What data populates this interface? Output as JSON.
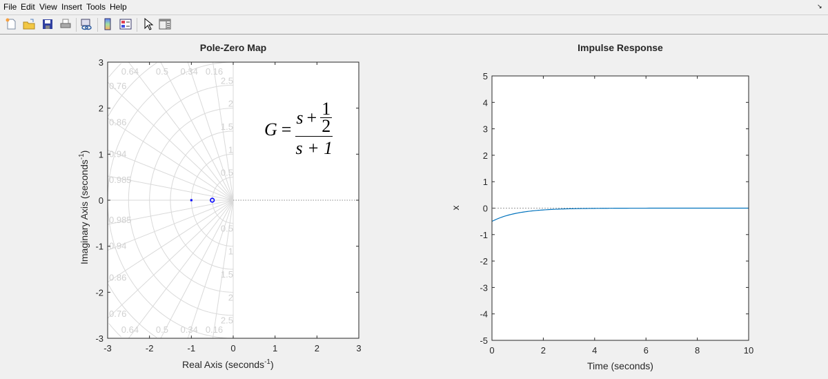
{
  "menu": [
    "File",
    "Edit",
    "View",
    "Insert",
    "Tools",
    "Help"
  ],
  "toolbar": [
    {
      "icon": "new-figure-icon"
    },
    {
      "icon": "open-file-icon"
    },
    {
      "icon": "save-icon"
    },
    {
      "icon": "print-icon"
    },
    {
      "icon": "link-plot-icon"
    },
    {
      "icon": "insert-colorbar-icon"
    },
    {
      "icon": "insert-legend-icon"
    },
    {
      "icon": "edit-plot-pointer-icon"
    },
    {
      "icon": "property-editor-icon"
    }
  ],
  "colors": {
    "axes_bg": "#ffffff",
    "figure_bg": "#f0f0f0",
    "marker": "#0000ff",
    "line": "#0072bd",
    "grid": "#d9d9d9"
  },
  "equation": {
    "lhs": "G",
    "eq": "=",
    "num_var": "s",
    "plus": "+",
    "frac_num": "1",
    "frac_den": "2",
    "den": "s + 1"
  },
  "chart_data": [
    {
      "type": "scatter",
      "title": "Pole-Zero Map",
      "xlabel": "Real  Axis  (seconds",
      "xlabel_sup": "-1",
      "xlabel_end": ")",
      "ylabel": "Imaginary  Axis  (seconds",
      "ylabel_sup": "-1",
      "ylabel_end": ")",
      "xlim": [
        -3,
        3
      ],
      "ylim": [
        -3,
        3
      ],
      "xticks": [
        "-3",
        "-2",
        "-1",
        "0",
        "1",
        "2",
        "3"
      ],
      "yticks": [
        "-3",
        "-2",
        "-1",
        "0",
        "1",
        "2",
        "3"
      ],
      "poles": [
        [
          -1,
          0
        ]
      ],
      "zeros": [
        [
          -0.5,
          0
        ]
      ],
      "grid": "s-plane",
      "damping_labels": [
        "0.16",
        "0.34",
        "0.5",
        "0.64",
        "0.76",
        "0.86",
        "0.94",
        "0.985"
      ],
      "frequency_labels": [
        "0.5",
        "1",
        "1.5",
        "2",
        "2.5"
      ]
    },
    {
      "type": "line",
      "title": "Impulse Response",
      "xlabel": "Time (seconds)",
      "ylabel": "x",
      "xlim": [
        0,
        10
      ],
      "ylim": [
        -5,
        5
      ],
      "xticks": [
        "0",
        "2",
        "4",
        "6",
        "8",
        "10"
      ],
      "yticks": [
        "-5",
        "-4",
        "-3",
        "-2",
        "-1",
        "0",
        "1",
        "2",
        "3",
        "4",
        "5"
      ],
      "x": [
        0,
        0.5,
        1,
        1.5,
        2,
        2.5,
        3,
        3.5,
        4,
        4.5,
        5,
        6,
        7,
        8,
        9,
        10
      ],
      "y": [
        -0.5,
        -0.303,
        -0.184,
        -0.112,
        -0.068,
        -0.041,
        -0.025,
        -0.015,
        -0.009,
        -0.006,
        -0.003,
        -0.001,
        0,
        0,
        0,
        0
      ]
    }
  ]
}
